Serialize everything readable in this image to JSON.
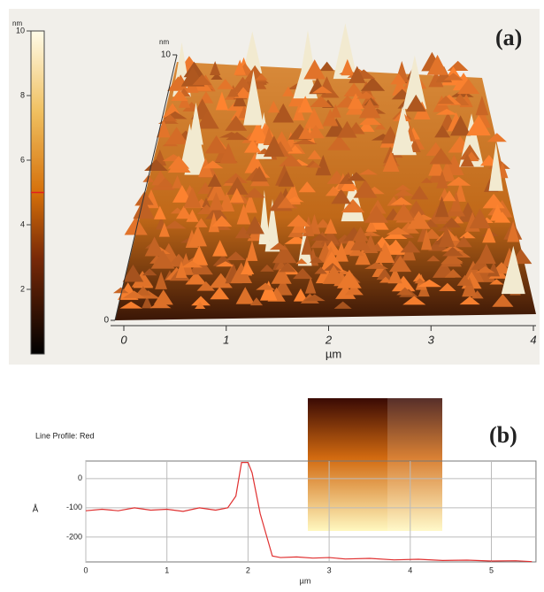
{
  "chart_data": [
    {
      "type": "surface3d",
      "label": "(a)",
      "colorbar": {
        "unit": "nm",
        "lim": [
          0,
          10
        ],
        "ticks": [
          2,
          4,
          6,
          8,
          10
        ],
        "marker": 5,
        "marker_color": "#e02020"
      },
      "zlabel": "nm",
      "zlim": [
        0,
        10
      ],
      "zticks": [
        0,
        10
      ],
      "xlabel": "µm",
      "xlim": [
        0,
        4
      ],
      "xticks": [
        0,
        1,
        2,
        3,
        4
      ]
    },
    {
      "type": "line",
      "label": "(b)",
      "title": "Line Profile: Red",
      "xlabel": "µm",
      "ylabel": "Å",
      "color": "#e03030",
      "xlim": [
        0,
        5.55
      ],
      "xticks": [
        0,
        1,
        2,
        3,
        4,
        5
      ],
      "ylim": [
        -285,
        60
      ],
      "yticks": [
        0,
        -100,
        -200
      ],
      "grid": true,
      "x": [
        0,
        0.2,
        0.4,
        0.6,
        0.8,
        1.0,
        1.2,
        1.4,
        1.6,
        1.75,
        1.85,
        1.92,
        2.0,
        2.05,
        2.15,
        2.3,
        2.4,
        2.6,
        2.8,
        3.0,
        3.2,
        3.5,
        3.8,
        4.1,
        4.4,
        4.7,
        5.0,
        5.3,
        5.5
      ],
      "values": [
        -110,
        -105,
        -110,
        -100,
        -108,
        -105,
        -112,
        -100,
        -108,
        -100,
        -60,
        55,
        55,
        20,
        -120,
        -265,
        -270,
        -268,
        -272,
        -270,
        -275,
        -273,
        -278,
        -276,
        -280,
        -279,
        -282,
        -281,
        -284
      ]
    }
  ]
}
